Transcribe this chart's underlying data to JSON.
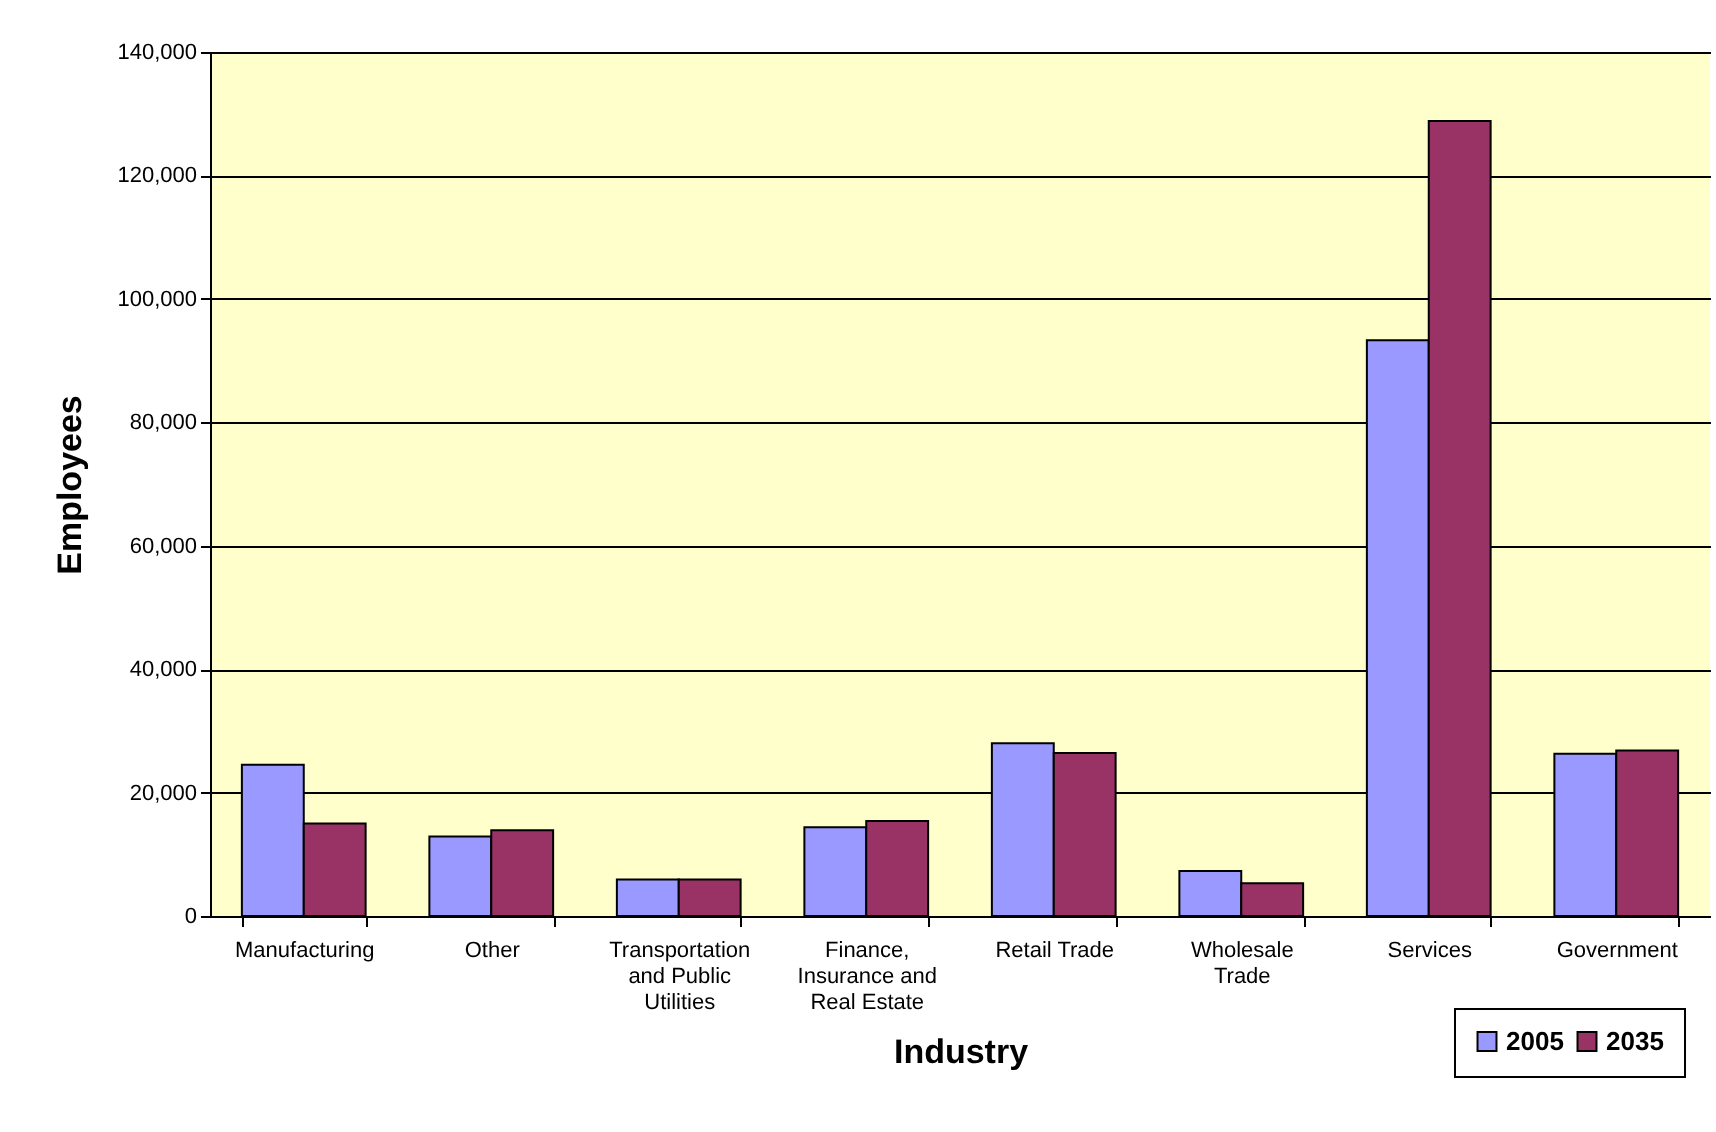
{
  "chart_data": {
    "type": "bar",
    "xlabel": "Industry",
    "ylabel": "Employees",
    "categories": [
      "Manufacturing",
      "Other",
      "Transportation and Public Utilities",
      "Finance, Insurance and Real Estate",
      "Retail Trade",
      "Wholesale Trade",
      "Services",
      "Government"
    ],
    "series": [
      {
        "name": "2005",
        "color": "#9999ff",
        "values": [
          24500,
          12900,
          5900,
          14400,
          28000,
          7300,
          93300,
          26300
        ]
      },
      {
        "name": "2035",
        "color": "#993366",
        "values": [
          15000,
          13900,
          5900,
          15400,
          26400,
          5300,
          128800,
          26800
        ]
      }
    ],
    "ylim": [
      0,
      140000
    ],
    "yticks": [
      0,
      {
        "value": 20000,
        "label": "20,000"
      },
      {
        "value": 40000,
        "label": "40,000"
      },
      {
        "value": 60000,
        "label": "60,000"
      },
      {
        "value": 80000,
        "label": "80,000"
      },
      {
        "value": 100000,
        "label": "100,000"
      },
      {
        "value": 120000,
        "label": "120,000"
      },
      {
        "value": 140000,
        "label": "140,000"
      }
    ],
    "grid": "y",
    "legend": "bottom right"
  }
}
